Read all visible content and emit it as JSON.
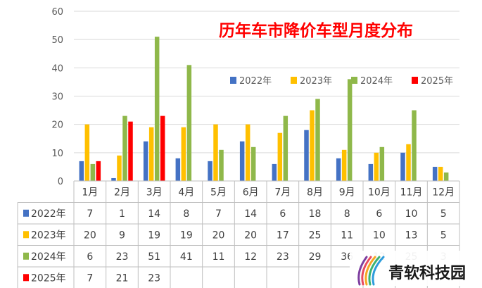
{
  "chart_data": {
    "type": "bar",
    "title": "历年车市降价车型月度分布",
    "categories": [
      "1月",
      "2月",
      "3月",
      "4月",
      "5月",
      "6月",
      "7月",
      "8月",
      "9月",
      "10月",
      "11月",
      "12月"
    ],
    "series": [
      {
        "name": "2022年",
        "color": "#4472c4",
        "values": [
          7,
          1,
          14,
          8,
          7,
          14,
          6,
          18,
          8,
          6,
          10,
          5
        ]
      },
      {
        "name": "2023年",
        "color": "#ffc000",
        "values": [
          20,
          9,
          19,
          19,
          20,
          20,
          17,
          25,
          11,
          10,
          13,
          5
        ]
      },
      {
        "name": "2024年",
        "color": "#8fb84a",
        "values": [
          6,
          23,
          51,
          41,
          11,
          12,
          23,
          29,
          36,
          12,
          25,
          3
        ]
      },
      {
        "name": "2025年",
        "color": "#ff0000",
        "values": [
          7,
          21,
          23,
          null,
          null,
          null,
          null,
          null,
          null,
          null,
          null,
          null
        ]
      }
    ],
    "ylim": [
      0,
      60
    ],
    "yticks": [
      0,
      10,
      20,
      30,
      40,
      50,
      60
    ],
    "grid": true,
    "legend_position": "top-right",
    "data_table": true
  },
  "watermark": {
    "text": "青软科技园",
    "logo_icon": "rainbow-stripes-icon"
  }
}
